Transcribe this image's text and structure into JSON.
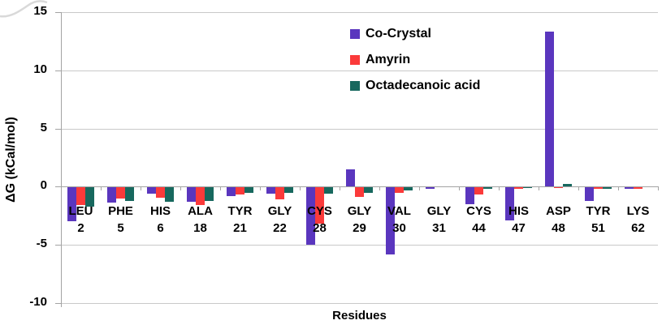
{
  "chart_data": {
    "type": "bar",
    "title": "",
    "xlabel": "Residues",
    "ylabel": "ΔG (kCal/mol)",
    "ylim": [
      -10,
      15
    ],
    "yticks": [
      15,
      10,
      5,
      0,
      -5,
      -10
    ],
    "grid": true,
    "legend_position": "top-center",
    "categories": [
      {
        "name": "LEU",
        "num": "2"
      },
      {
        "name": "PHE",
        "num": "5"
      },
      {
        "name": "HIS",
        "num": "6"
      },
      {
        "name": "ALA",
        "num": "18"
      },
      {
        "name": "TYR",
        "num": "21"
      },
      {
        "name": "GLY",
        "num": "22"
      },
      {
        "name": "CYS",
        "num": "28"
      },
      {
        "name": "GLY",
        "num": "29"
      },
      {
        "name": "VAL",
        "num": "30"
      },
      {
        "name": "GLY",
        "num": "31"
      },
      {
        "name": "CYS",
        "num": "44"
      },
      {
        "name": "HIS",
        "num": "47"
      },
      {
        "name": "ASP",
        "num": "48"
      },
      {
        "name": "TYR",
        "num": "51"
      },
      {
        "name": "LYS",
        "num": "62"
      }
    ],
    "series": [
      {
        "name": "Co-Crystal",
        "color": "#5A36BE",
        "values": [
          -3.0,
          -1.4,
          -0.6,
          -1.3,
          -0.8,
          -0.6,
          -5.0,
          1.5,
          -5.8,
          -0.15,
          -1.5,
          -2.9,
          13.3,
          -1.2,
          -0.15
        ]
      },
      {
        "name": "Amyrin",
        "color": "#FB3A3A",
        "values": [
          -1.6,
          -1.0,
          -0.95,
          -1.6,
          -0.7,
          -1.1,
          -3.2,
          -0.9,
          -0.55,
          -0.05,
          -0.7,
          -0.15,
          -0.1,
          -0.2,
          -0.2
        ]
      },
      {
        "name": "Octadecanoic acid",
        "color": "#17685E",
        "values": [
          -1.7,
          -1.2,
          -1.3,
          -1.2,
          -0.5,
          -0.5,
          -0.6,
          -0.5,
          -0.3,
          -0.05,
          -0.15,
          -0.1,
          0.25,
          -0.15,
          -0.05
        ]
      }
    ]
  },
  "colors": {
    "gridline": "#C9C9C9",
    "axis": "#A3A3A3",
    "text": "#000000",
    "background": "#FFFFFF",
    "curl": "#D9D9D9"
  }
}
